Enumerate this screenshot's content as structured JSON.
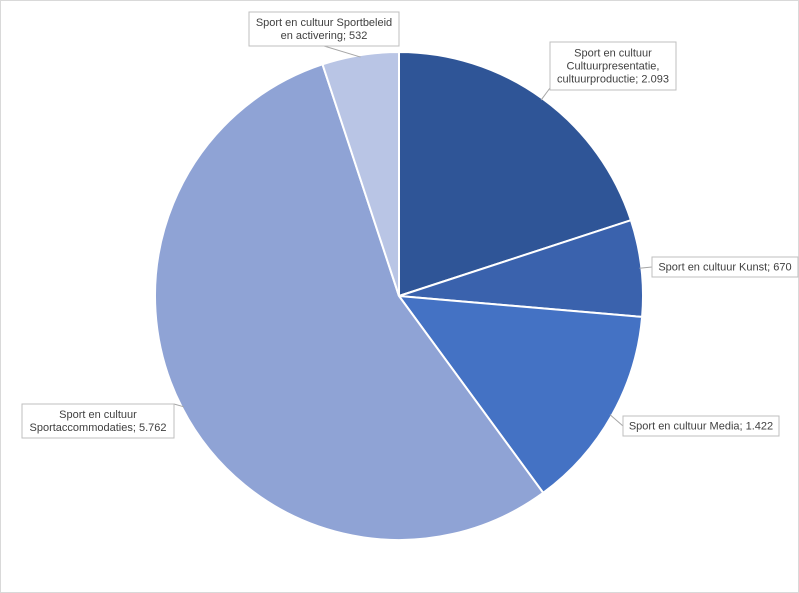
{
  "chart_data": {
    "type": "pie",
    "title": "",
    "legend": "none",
    "slices": [
      {
        "name": "Sport en cultuur Cultuurpresentatie, cultuurproductie",
        "value": 2093,
        "label_lines": [
          "Sport en cultuur",
          "Cultuurpresentatie,",
          "cultuurproductie; 2.093"
        ],
        "color": "#2f5597"
      },
      {
        "name": "Sport en cultuur Kunst",
        "value": 670,
        "label_lines": [
          "Sport en cultuur Kunst; 670"
        ],
        "color": "#3a62ad"
      },
      {
        "name": "Sport en cultuur Media",
        "value": 1422,
        "label_lines": [
          "Sport en cultuur Media; 1.422"
        ],
        "color": "#4472c4"
      },
      {
        "name": "Sport en cultuur Sportaccommodaties",
        "value": 5762,
        "label_lines": [
          "Sport en cultuur",
          "Sportaccommodaties; 5.762"
        ],
        "color": "#8fa3d5"
      },
      {
        "name": "Sport en cultuur Sportbeleid en activering",
        "value": 532,
        "label_lines": [
          "Sport en cultuur Sportbeleid",
          "en activering; 532"
        ],
        "color": "#b9c5e5"
      }
    ]
  }
}
